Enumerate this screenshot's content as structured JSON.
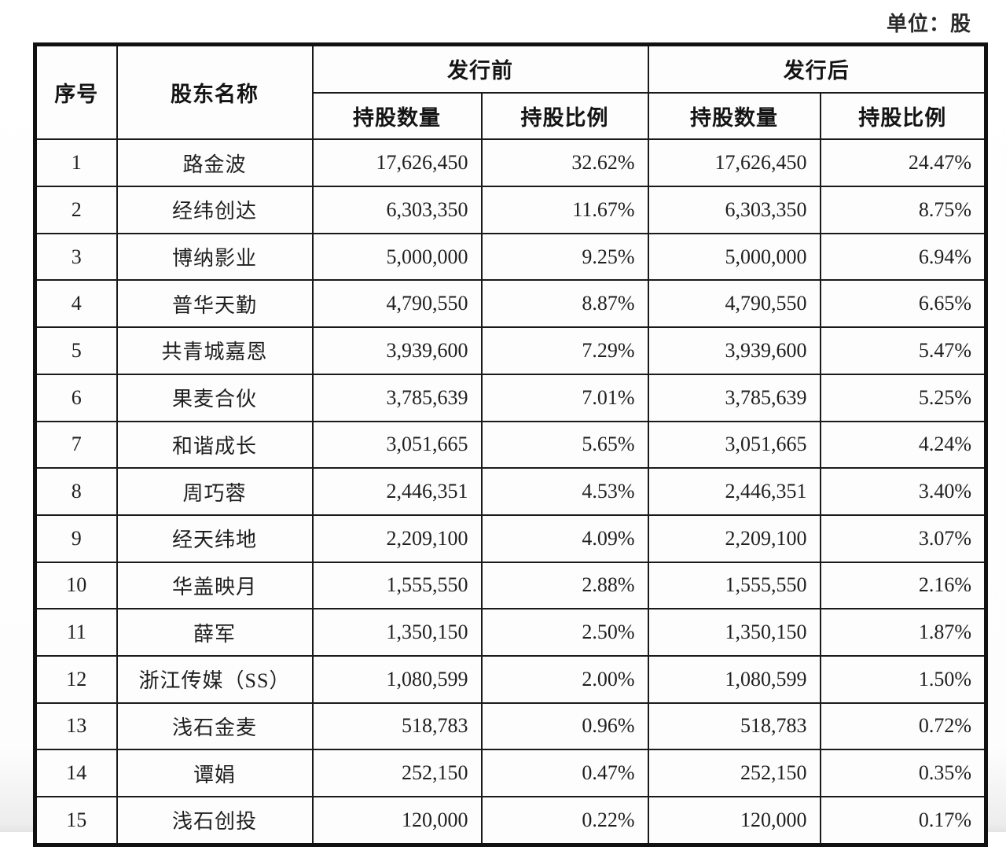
{
  "page": {
    "unit_label": "单位：股"
  },
  "table": {
    "headers": {
      "index": "序号",
      "name": "股东名称",
      "before": "发行前",
      "after": "发行后",
      "before_qty": "持股数量",
      "before_ratio": "持股比例",
      "after_qty": "持股数量",
      "after_ratio": "持股比例"
    },
    "rows": [
      {
        "no": "1",
        "name": "路金波",
        "before_qty": "17,626,450",
        "before_ratio": "32.62%",
        "after_qty": "17,626,450",
        "after_ratio": "24.47%"
      },
      {
        "no": "2",
        "name": "经纬创达",
        "before_qty": "6,303,350",
        "before_ratio": "11.67%",
        "after_qty": "6,303,350",
        "after_ratio": "8.75%"
      },
      {
        "no": "3",
        "name": "博纳影业",
        "before_qty": "5,000,000",
        "before_ratio": "9.25%",
        "after_qty": "5,000,000",
        "after_ratio": "6.94%"
      },
      {
        "no": "4",
        "name": "普华天勤",
        "before_qty": "4,790,550",
        "before_ratio": "8.87%",
        "after_qty": "4,790,550",
        "after_ratio": "6.65%"
      },
      {
        "no": "5",
        "name": "共青城嘉恩",
        "before_qty": "3,939,600",
        "before_ratio": "7.29%",
        "after_qty": "3,939,600",
        "after_ratio": "5.47%"
      },
      {
        "no": "6",
        "name": "果麦合伙",
        "before_qty": "3,785,639",
        "before_ratio": "7.01%",
        "after_qty": "3,785,639",
        "after_ratio": "5.25%"
      },
      {
        "no": "7",
        "name": "和谐成长",
        "before_qty": "3,051,665",
        "before_ratio": "5.65%",
        "after_qty": "3,051,665",
        "after_ratio": "4.24%"
      },
      {
        "no": "8",
        "name": "周巧蓉",
        "before_qty": "2,446,351",
        "before_ratio": "4.53%",
        "after_qty": "2,446,351",
        "after_ratio": "3.40%"
      },
      {
        "no": "9",
        "name": "经天纬地",
        "before_qty": "2,209,100",
        "before_ratio": "4.09%",
        "after_qty": "2,209,100",
        "after_ratio": "3.07%"
      },
      {
        "no": "10",
        "name": "华盖映月",
        "before_qty": "1,555,550",
        "before_ratio": "2.88%",
        "after_qty": "1,555,550",
        "after_ratio": "2.16%"
      },
      {
        "no": "11",
        "name": "薛军",
        "before_qty": "1,350,150",
        "before_ratio": "2.50%",
        "after_qty": "1,350,150",
        "after_ratio": "1.87%"
      },
      {
        "no": "12",
        "name": "浙江传媒（SS）",
        "before_qty": "1,080,599",
        "before_ratio": "2.00%",
        "after_qty": "1,080,599",
        "after_ratio": "1.50%"
      },
      {
        "no": "13",
        "name": "浅石金麦",
        "before_qty": "518,783",
        "before_ratio": "0.96%",
        "after_qty": "518,783",
        "after_ratio": "0.72%"
      },
      {
        "no": "14",
        "name": "谭娟",
        "before_qty": "252,150",
        "before_ratio": "0.47%",
        "after_qty": "252,150",
        "after_ratio": "0.35%"
      },
      {
        "no": "15",
        "name": "浅石创投",
        "before_qty": "120,000",
        "before_ratio": "0.22%",
        "after_qty": "120,000",
        "after_ratio": "0.17%"
      }
    ]
  },
  "colors": {
    "border": "#1a1a1a",
    "outer_border": "#111111",
    "text": "#1f1f1f",
    "background": "#fdfdfd"
  }
}
